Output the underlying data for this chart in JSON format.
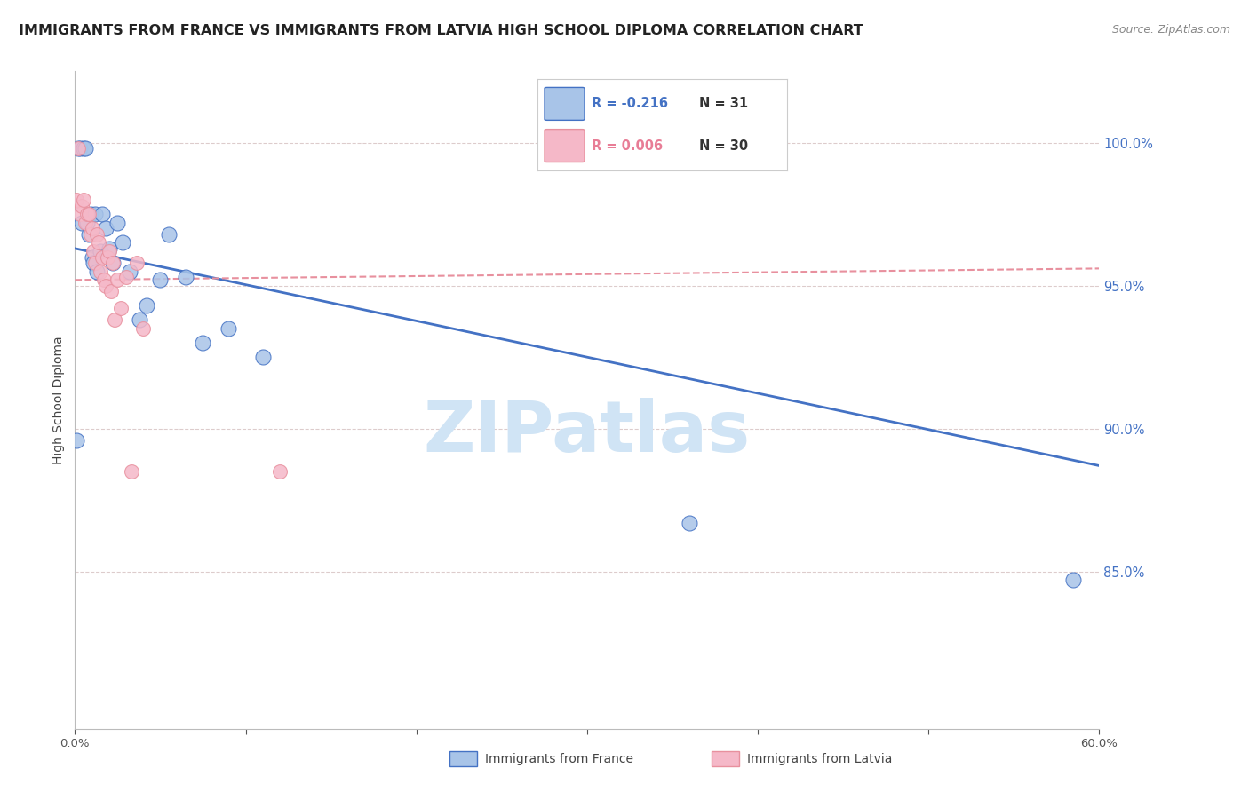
{
  "title": "IMMIGRANTS FROM FRANCE VS IMMIGRANTS FROM LATVIA HIGH SCHOOL DIPLOMA CORRELATION CHART",
  "source": "Source: ZipAtlas.com",
  "ylabel": "High School Diploma",
  "xlim": [
    0.0,
    0.6
  ],
  "ylim": [
    0.795,
    1.025
  ],
  "yticks_right": [
    0.85,
    0.9,
    0.95,
    1.0
  ],
  "ytick_labels_right": [
    "85.0%",
    "90.0%",
    "95.0%",
    "100.0%"
  ],
  "legend_r_france": "-0.216",
  "legend_n_france": "31",
  "legend_r_latvia": "0.006",
  "legend_n_latvia": "30",
  "color_france": "#a8c4e8",
  "color_latvia": "#f5b8c8",
  "color_france_line": "#4472c4",
  "color_latvia_line": "#e8909e",
  "watermark": "ZIPatlas",
  "watermark_color": "#d0e4f5",
  "france_x": [
    0.001,
    0.002,
    0.003,
    0.004,
    0.005,
    0.006,
    0.007,
    0.008,
    0.009,
    0.01,
    0.011,
    0.012,
    0.013,
    0.015,
    0.016,
    0.018,
    0.02,
    0.022,
    0.025,
    0.028,
    0.032,
    0.038,
    0.042,
    0.05,
    0.055,
    0.065,
    0.075,
    0.09,
    0.11,
    0.36,
    0.585
  ],
  "france_y": [
    0.896,
    0.998,
    0.998,
    0.972,
    0.998,
    0.998,
    0.972,
    0.968,
    0.975,
    0.96,
    0.958,
    0.975,
    0.955,
    0.962,
    0.975,
    0.97,
    0.963,
    0.958,
    0.972,
    0.965,
    0.955,
    0.938,
    0.943,
    0.952,
    0.968,
    0.953,
    0.93,
    0.935,
    0.925,
    0.867,
    0.847
  ],
  "latvia_x": [
    0.001,
    0.002,
    0.003,
    0.004,
    0.005,
    0.006,
    0.007,
    0.008,
    0.009,
    0.01,
    0.011,
    0.012,
    0.013,
    0.014,
    0.015,
    0.016,
    0.017,
    0.018,
    0.019,
    0.02,
    0.021,
    0.022,
    0.023,
    0.025,
    0.027,
    0.03,
    0.033,
    0.036,
    0.04,
    0.12
  ],
  "latvia_y": [
    0.98,
    0.998,
    0.975,
    0.978,
    0.98,
    0.972,
    0.975,
    0.975,
    0.968,
    0.97,
    0.962,
    0.958,
    0.968,
    0.965,
    0.955,
    0.96,
    0.952,
    0.95,
    0.96,
    0.962,
    0.948,
    0.958,
    0.938,
    0.952,
    0.942,
    0.953,
    0.885,
    0.958,
    0.935,
    0.885
  ],
  "title_fontsize": 11.5,
  "source_fontsize": 9,
  "axis_label_fontsize": 10,
  "tick_fontsize": 9.5
}
